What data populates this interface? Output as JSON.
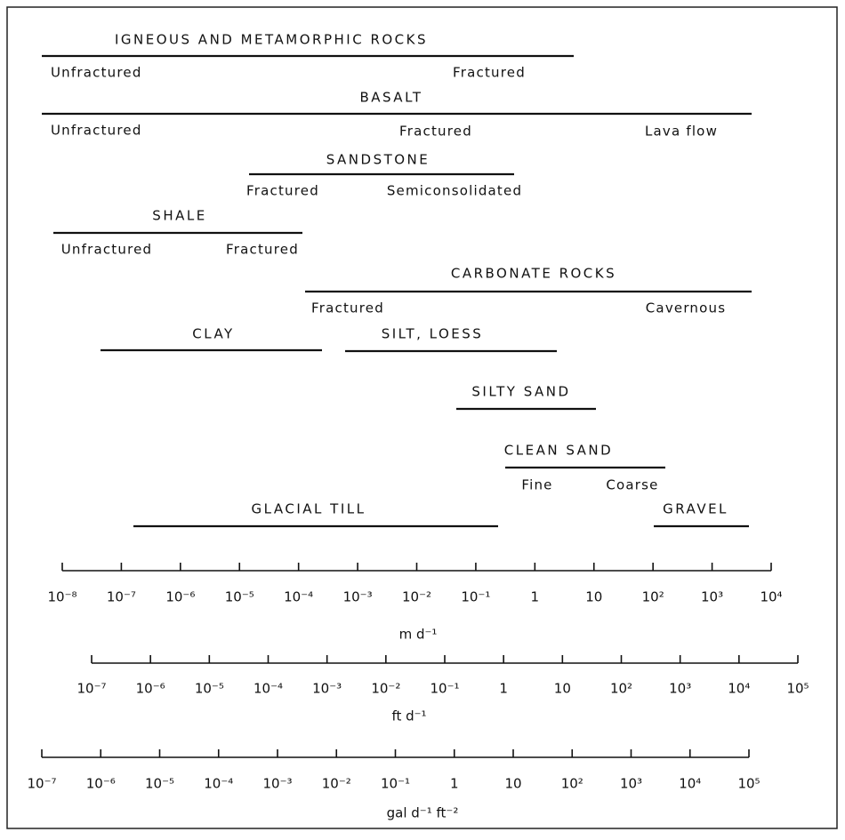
{
  "groups": [
    {
      "title": "IGNEOUS AND METAMORPHIC ROCKS",
      "subs": [
        "Unfractured",
        "Fractured"
      ]
    },
    {
      "title": "BASALT",
      "subs": [
        "Unfractured",
        "Fractured",
        "Lava flow"
      ]
    },
    {
      "title": "SANDSTONE",
      "subs": [
        "Fractured",
        "Semiconsolidated"
      ]
    },
    {
      "title": "SHALE",
      "subs": [
        "Unfractured",
        "Fractured"
      ]
    },
    {
      "title": "CARBONATE ROCKS",
      "subs": [
        "Fractured",
        "Cavernous"
      ]
    },
    {
      "title": "CLAY",
      "subs": []
    },
    {
      "title": "SILT, LOESS",
      "subs": []
    },
    {
      "title": "SILTY SAND",
      "subs": []
    },
    {
      "title": "CLEAN SAND",
      "subs": [
        "Fine",
        "Coarse"
      ]
    },
    {
      "title": "GLACIAL TILL",
      "subs": []
    },
    {
      "title": "GRAVEL",
      "subs": []
    }
  ],
  "scales": [
    {
      "unit": "m d⁻¹",
      "ticks": [
        "10⁻⁸",
        "10⁻⁷",
        "10⁻⁶",
        "10⁻⁵",
        "10⁻⁴",
        "10⁻³",
        "10⁻²",
        "10⁻¹",
        "1",
        "10",
        "10²",
        "10³",
        "10⁴"
      ]
    },
    {
      "unit": "ft d⁻¹",
      "ticks": [
        "10⁻⁷",
        "10⁻⁶",
        "10⁻⁵",
        "10⁻⁴",
        "10⁻³",
        "10⁻²",
        "10⁻¹",
        "1",
        "10",
        "10²",
        "10³",
        "10⁴",
        "10⁵"
      ]
    },
    {
      "unit": "gal d⁻¹ ft⁻²",
      "ticks": [
        "10⁻⁷",
        "10⁻⁶",
        "10⁻⁵",
        "10⁻⁴",
        "10⁻³",
        "10⁻²",
        "10⁻¹",
        "1",
        "10",
        "10²",
        "10³",
        "10⁴",
        "10⁵"
      ]
    }
  ]
}
